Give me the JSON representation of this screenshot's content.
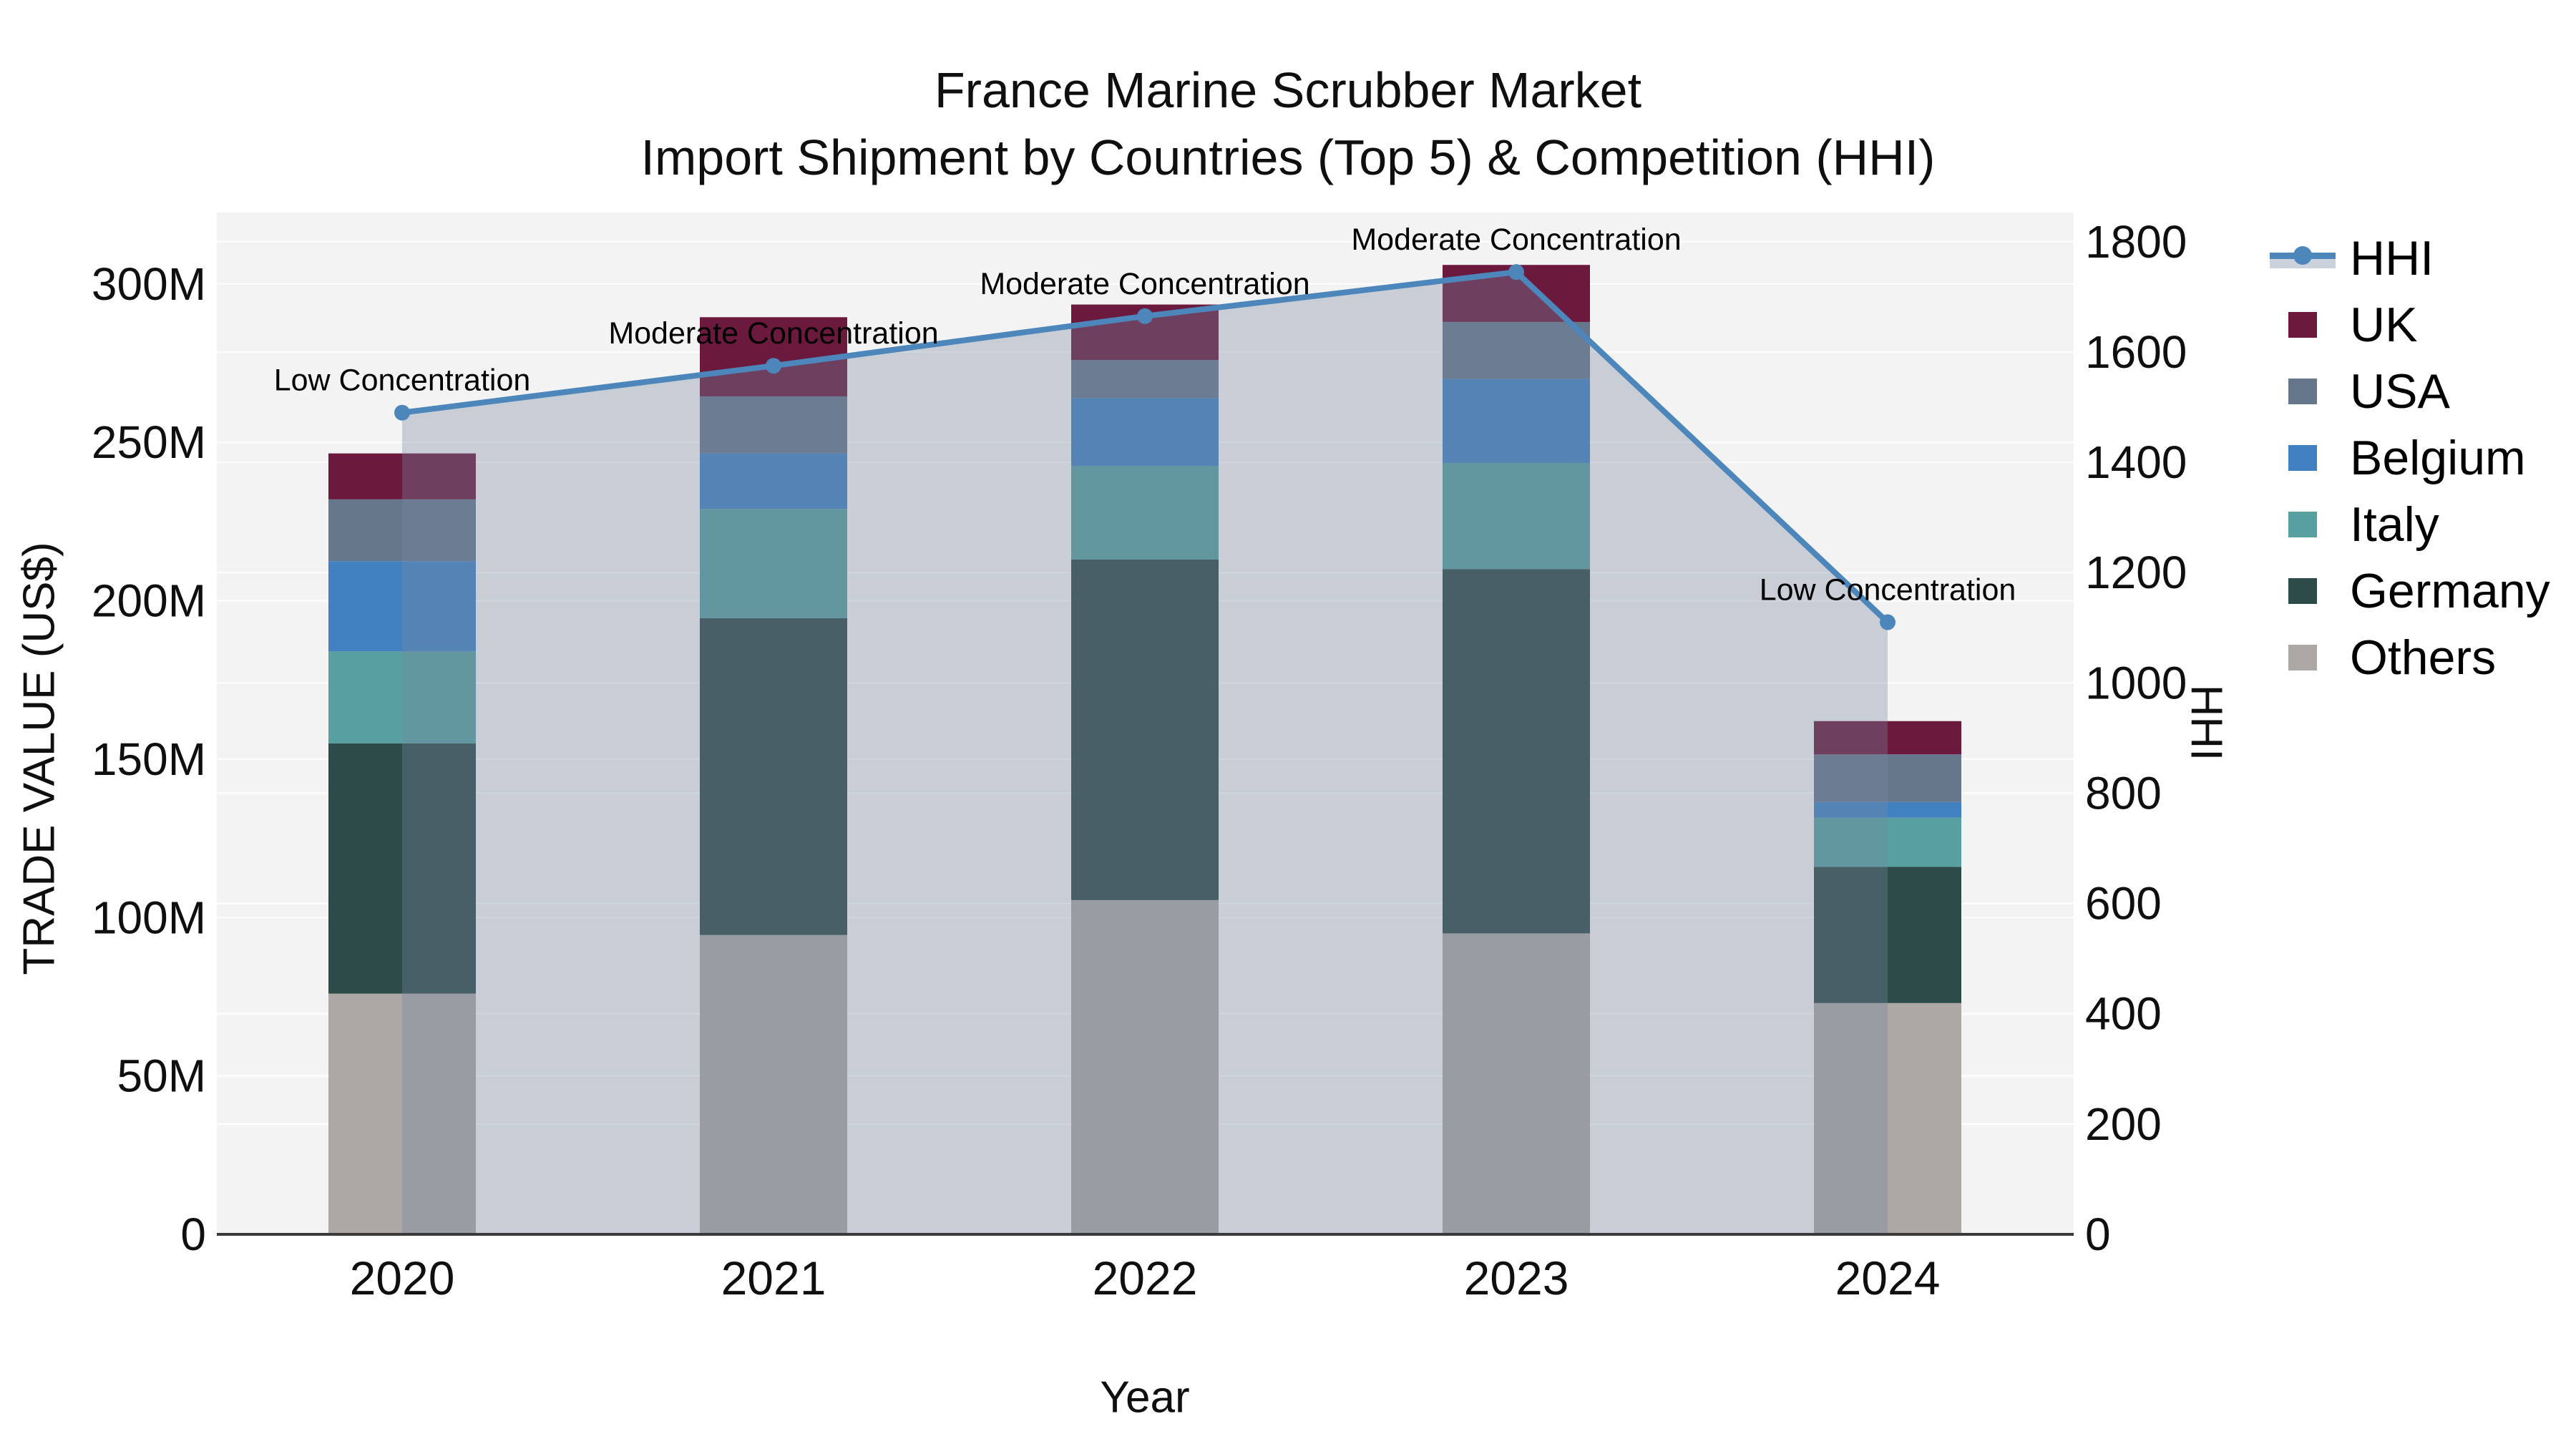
{
  "title": "France Marine Scrubber Market",
  "subtitle": "Import Shipment by Countries (Top 5) & Competition (HHI)",
  "axes": {
    "x_label": "Year",
    "y_left_label": "TRADE VALUE (US$)",
    "y_right_label": "HHI",
    "y_left_tick_labels": [
      "0",
      "50M",
      "100M",
      "150M",
      "200M",
      "250M",
      "300M"
    ],
    "y_right_tick_labels": [
      "0",
      "200",
      "400",
      "600",
      "800",
      "1000",
      "1200",
      "1400",
      "1600",
      "1800"
    ]
  },
  "chart_data": {
    "type": "combo: stacked bar (left axis) + line with area fill (right axis)",
    "title": "France Marine Scrubber Market",
    "subtitle": "Import Shipment by Countries (Top 5) & Competition (HHI)",
    "categories": [
      "2020",
      "2021",
      "2022",
      "2023",
      "2024"
    ],
    "xlabel": "Year",
    "y_left": {
      "label": "TRADE VALUE (US$)",
      "unit": "million US$",
      "min": 0,
      "tick_max": 300,
      "tick_step": 50
    },
    "y_right": {
      "label": "HHI",
      "min": 0,
      "tick_max": 1800,
      "tick_step": 200
    },
    "grid": "both axes, horizontal white gridlines on light gray plot background",
    "legend_position": "right, outside plot, top-aligned",
    "legend_order": [
      "HHI",
      "UK",
      "USA",
      "Belgium",
      "Italy",
      "Germany",
      "Others"
    ],
    "stack_order_bottom_to_top": [
      "Others",
      "Germany",
      "Italy",
      "Belgium",
      "USA",
      "UK"
    ],
    "series": [
      {
        "name": "Others",
        "color": "#ada8a6",
        "values": [
          76,
          94.5,
          105.5,
          95,
          73
        ]
      },
      {
        "name": "Germany",
        "color": "#2d4b48",
        "values": [
          79,
          100,
          107.5,
          115,
          43
        ]
      },
      {
        "name": "Italy",
        "color": "#58a0a0",
        "values": [
          29,
          34.5,
          29.5,
          33.5,
          15.5
        ]
      },
      {
        "name": "Belgium",
        "color": "#4181c0",
        "values": [
          28.5,
          17.5,
          21.5,
          26.5,
          5
        ]
      },
      {
        "name": "USA",
        "color": "#66778c",
        "values": [
          19.5,
          18,
          12,
          18,
          15
        ]
      },
      {
        "name": "UK",
        "color": "#6b1a3e",
        "values": [
          14.5,
          25,
          17.5,
          18,
          10.5
        ]
      }
    ],
    "bar_totals_millions": [
      246.5,
      289.5,
      293.5,
      306,
      162
    ],
    "hhi_line": {
      "name": "HHI",
      "values": [
        1490,
        1575,
        1665,
        1745,
        1110
      ],
      "line_color": "#4c86bb",
      "marker": "circle",
      "area_fill_color": "rgba(121,135,161,0.35)"
    },
    "annotations": [
      {
        "category": "2020",
        "text": "Low Concentration"
      },
      {
        "category": "2021",
        "text": "Moderate Concentration"
      },
      {
        "category": "2022",
        "text": "Moderate Concentration"
      },
      {
        "category": "2023",
        "text": "Moderate Concentration"
      },
      {
        "category": "2024",
        "text": "Low Concentration"
      }
    ],
    "colors": {
      "plot_background": "#f3f3f3",
      "gridline": "#ffffff",
      "bottom_spine": "#3a3a3a",
      "text": "#0f0f0f"
    }
  },
  "legend": {
    "items": [
      {
        "label": "HHI",
        "type": "line"
      },
      {
        "label": "UK",
        "type": "swatch",
        "color": "#6b1a3e"
      },
      {
        "label": "USA",
        "type": "swatch",
        "color": "#66778c"
      },
      {
        "label": "Belgium",
        "type": "swatch",
        "color": "#4181c0"
      },
      {
        "label": "Italy",
        "type": "swatch",
        "color": "#58a0a0"
      },
      {
        "label": "Germany",
        "type": "swatch",
        "color": "#2d4b48"
      },
      {
        "label": "Others",
        "type": "swatch",
        "color": "#ada8a6"
      }
    ]
  }
}
